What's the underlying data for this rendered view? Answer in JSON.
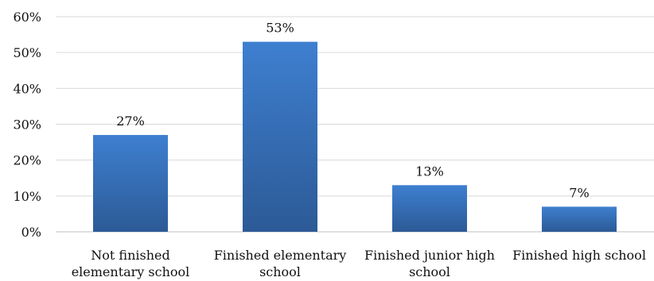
{
  "chart_data": {
    "type": "bar",
    "categories": [
      [
        "Not finished",
        "elementary school"
      ],
      [
        "Finished elementary",
        "school"
      ],
      [
        "Finished junior high",
        "school"
      ],
      [
        "Finished high school"
      ]
    ],
    "values": [
      27,
      53,
      13,
      7
    ],
    "data_labels": [
      "27%",
      "53%",
      "13%",
      "7%"
    ],
    "y_ticks": [
      "0%",
      "10%",
      "20%",
      "30%",
      "40%",
      "50%",
      "60%"
    ],
    "ylim": [
      0,
      60
    ],
    "title": "",
    "xlabel": "",
    "ylabel": "",
    "grid": true,
    "legend": "none",
    "bar_color_top": "#3e7fd0",
    "bar_color_bottom": "#2c5a96"
  }
}
